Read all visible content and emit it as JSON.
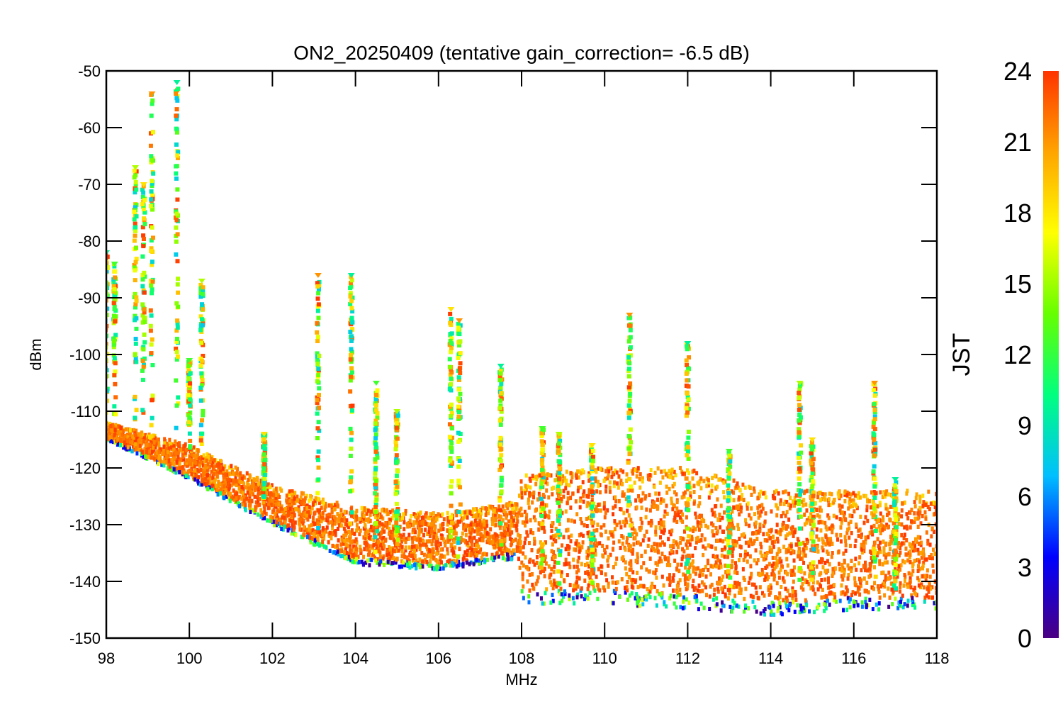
{
  "chart_data": {
    "type": "scatter",
    "title": "ON2_20250409 (tentative gain_correction= -6.5 dB)",
    "xlabel": "MHz",
    "ylabel": "dBm",
    "xlim": [
      98,
      118
    ],
    "ylim": [
      -150,
      -50
    ],
    "x_ticks": [
      "98",
      "100",
      "102",
      "104",
      "106",
      "108",
      "110",
      "112",
      "114",
      "116",
      "118"
    ],
    "y_ticks": [
      "-50",
      "-60",
      "-70",
      "-80",
      "-90",
      "-100",
      "-110",
      "-120",
      "-130",
      "-140",
      "-150"
    ],
    "grid": false,
    "colorbar": {
      "label": "JST",
      "range": [
        0,
        24
      ],
      "ticks": [
        "24",
        "21",
        "18",
        "15",
        "12",
        "9",
        "6",
        "3",
        "0"
      ],
      "colormap": "rainbow",
      "stops": [
        "#4b0082",
        "#0000ff",
        "#00bfff",
        "#00ff80",
        "#66ff00",
        "#ffff00",
        "#ffa500",
        "#ff3300"
      ]
    },
    "peaks": [
      {
        "x": 98.0,
        "ytop": -82,
        "ybase": -113
      },
      {
        "x": 98.2,
        "ytop": -84,
        "ybase": -114
      },
      {
        "x": 98.7,
        "ytop": -67,
        "ybase": -115
      },
      {
        "x": 98.9,
        "ytop": -70,
        "ybase": -116
      },
      {
        "x": 99.1,
        "ytop": -54,
        "ybase": -117
      },
      {
        "x": 99.7,
        "ytop": -52,
        "ybase": -117
      },
      {
        "x": 100.0,
        "ytop": -101,
        "ybase": -118
      },
      {
        "x": 100.3,
        "ytop": -87,
        "ybase": -119
      },
      {
        "x": 101.8,
        "ytop": -114,
        "ybase": -126
      },
      {
        "x": 103.1,
        "ytop": -86,
        "ybase": -133
      },
      {
        "x": 103.9,
        "ytop": -86,
        "ybase": -134
      },
      {
        "x": 104.5,
        "ytop": -105,
        "ybase": -135
      },
      {
        "x": 105.0,
        "ytop": -110,
        "ybase": -136
      },
      {
        "x": 106.3,
        "ytop": -92,
        "ybase": -137
      },
      {
        "x": 106.5,
        "ytop": -94,
        "ybase": -137
      },
      {
        "x": 107.5,
        "ytop": -102,
        "ybase": -136
      },
      {
        "x": 108.5,
        "ytop": -113,
        "ybase": -140
      },
      {
        "x": 108.9,
        "ytop": -114,
        "ybase": -141
      },
      {
        "x": 109.7,
        "ytop": -116,
        "ybase": -141
      },
      {
        "x": 110.6,
        "ytop": -93,
        "ybase": -141
      },
      {
        "x": 112.0,
        "ytop": -98,
        "ybase": -141
      },
      {
        "x": 113.0,
        "ytop": -117,
        "ybase": -142
      },
      {
        "x": 114.7,
        "ytop": -105,
        "ybase": -142
      },
      {
        "x": 115.0,
        "ytop": -115,
        "ybase": -142
      },
      {
        "x": 116.5,
        "ytop": -105,
        "ybase": -142
      },
      {
        "x": 117.0,
        "ytop": -122,
        "ybase": -142
      }
    ],
    "baseline": [
      {
        "x": 98.0,
        "ytop": -112,
        "ybot": -115
      },
      {
        "x": 100.0,
        "ytop": -116,
        "ybot": -122
      },
      {
        "x": 102.0,
        "ytop": -123,
        "ybot": -130
      },
      {
        "x": 104.0,
        "ytop": -127,
        "ybot": -137
      },
      {
        "x": 106.0,
        "ytop": -128,
        "ybot": -138
      },
      {
        "x": 107.9,
        "ytop": -126,
        "ybot": -136
      },
      {
        "x": 108.0,
        "ytop": -121,
        "ybot": -144
      },
      {
        "x": 110.0,
        "ytop": -120,
        "ybot": -144
      },
      {
        "x": 112.0,
        "ytop": -120,
        "ybot": -145
      },
      {
        "x": 114.0,
        "ytop": -124,
        "ybot": -146
      },
      {
        "x": 116.0,
        "ytop": -124,
        "ybot": -145
      },
      {
        "x": 118.0,
        "ytop": -124,
        "ybot": -145
      }
    ]
  }
}
